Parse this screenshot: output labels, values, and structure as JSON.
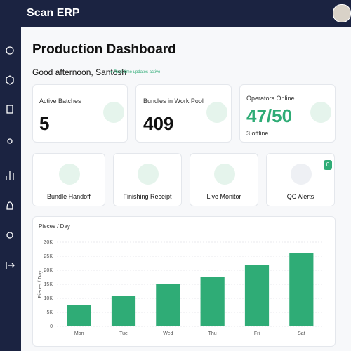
{
  "header": {
    "title": "Scan ERP"
  },
  "page": {
    "title": "Production Dashboard",
    "greeting": "Good afternoon, Santosh",
    "status": "Real-time updates active"
  },
  "stats": [
    {
      "label": "Active Batches",
      "value": 5
    },
    {
      "label": "Bundles in Work Pool",
      "value": 409
    },
    {
      "label": "Operators Online",
      "value": "47/50",
      "note": "3 offline"
    }
  ],
  "actions": [
    {
      "label": "Bundle Handoff"
    },
    {
      "label": "Finishing Receipt"
    },
    {
      "label": "Live Monitor"
    },
    {
      "label": "QC Alerts",
      "badge": 0
    }
  ],
  "chart_data": {
    "type": "bar",
    "title": "Pieces / Day",
    "y_label": "Pieces / Day",
    "categories": [
      "Mon",
      "Tue",
      "Wed",
      "Thu",
      "Fri",
      "Sat"
    ],
    "values": [
      7500,
      11000,
      15000,
      17700,
      21800,
      26000
    ],
    "color": "#2fac76",
    "ylim": [
      0,
      30000
    ],
    "yticks": [
      0,
      {
        "value": 5000,
        "label": "5K"
      },
      {
        "value": 10000,
        "label": "10K"
      },
      {
        "value": 15000,
        "label": "15K"
      },
      {
        "value": 20000,
        "label": "20K"
      },
      {
        "value": 25000,
        "label": "25K"
      },
      {
        "value": 30000,
        "label": "30K"
      }
    ],
    "grid": true
  }
}
